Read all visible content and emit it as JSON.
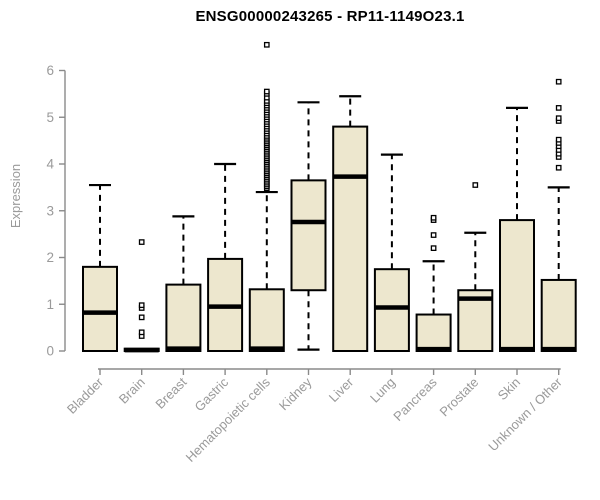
{
  "chart_data": {
    "type": "boxplot",
    "title": "ENSG00000243265 - RP11-1149O23.1",
    "ylabel": "Expression",
    "xlabel": "",
    "ylim": [
      0,
      6
    ],
    "yticks": [
      0,
      1,
      2,
      3,
      4,
      5,
      6
    ],
    "grid": false,
    "legend": "none",
    "categories": [
      "Bladder",
      "Brain",
      "Breast",
      "Gastric",
      "Hematopoietic cells",
      "Kidney",
      "Liver",
      "Lung",
      "Pancreas",
      "Prostate",
      "Skin",
      "Unknown / Other"
    ],
    "boxes": [
      {
        "name": "Bladder",
        "whisker_low": 0,
        "q1": 0,
        "median": 0.82,
        "q3": 1.8,
        "whisker_high": 3.55,
        "outliers": []
      },
      {
        "name": "Brain",
        "whisker_low": 0,
        "q1": 0,
        "median": 0.02,
        "q3": 0.05,
        "whisker_high": 0.05,
        "outliers": [
          0.32,
          0.4,
          0.72,
          0.92,
          0.98,
          2.33
        ]
      },
      {
        "name": "Breast",
        "whisker_low": 0,
        "q1": 0,
        "median": 0.05,
        "q3": 1.42,
        "whisker_high": 2.88,
        "outliers": []
      },
      {
        "name": "Gastric",
        "whisker_low": 0,
        "q1": 0,
        "median": 0.95,
        "q3": 1.97,
        "whisker_high": 4.0,
        "outliers": []
      },
      {
        "name": "Hematopoietic cells",
        "whisker_low": 0,
        "q1": 0,
        "median": 0.05,
        "q3": 1.32,
        "whisker_high": 3.4,
        "outliers": [
          3.48,
          3.52,
          3.56,
          3.6,
          3.64,
          3.68,
          3.72,
          3.76,
          3.8,
          3.84,
          3.88,
          3.92,
          3.96,
          4.0,
          4.04,
          4.08,
          4.12,
          4.16,
          4.2,
          4.24,
          4.28,
          4.32,
          4.36,
          4.4,
          4.44,
          4.48,
          4.52,
          4.56,
          4.6,
          4.65,
          4.7,
          4.75,
          4.8,
          4.85,
          4.9,
          4.95,
          5.0,
          5.05,
          5.1,
          5.15,
          5.2,
          5.25,
          5.3,
          5.35,
          5.42,
          5.5,
          5.55,
          6.55
        ]
      },
      {
        "name": "Kidney",
        "whisker_low": 0.03,
        "q1": 1.3,
        "median": 2.76,
        "q3": 3.65,
        "whisker_high": 5.32,
        "outliers": []
      },
      {
        "name": "Liver",
        "whisker_low": 0,
        "q1": 0,
        "median": 3.73,
        "q3": 4.8,
        "whisker_high": 5.45,
        "outliers": []
      },
      {
        "name": "Lung",
        "whisker_low": 0,
        "q1": 0,
        "median": 0.93,
        "q3": 1.75,
        "whisker_high": 4.2,
        "outliers": []
      },
      {
        "name": "Pancreas",
        "whisker_low": 0,
        "q1": 0,
        "median": 0.04,
        "q3": 0.78,
        "whisker_high": 1.92,
        "outliers": [
          2.2,
          2.48,
          2.8,
          2.85
        ]
      },
      {
        "name": "Prostate",
        "whisker_low": 0,
        "q1": 0,
        "median": 1.12,
        "q3": 1.3,
        "whisker_high": 2.53,
        "outliers": [
          3.55
        ]
      },
      {
        "name": "Skin",
        "whisker_low": 0,
        "q1": 0,
        "median": 0.04,
        "q3": 2.8,
        "whisker_high": 5.2,
        "outliers": []
      },
      {
        "name": "Unknown / Other",
        "whisker_low": 0,
        "q1": 0,
        "median": 0.04,
        "q3": 1.52,
        "whisker_high": 3.5,
        "outliers": [
          3.92,
          4.15,
          4.22,
          4.3,
          4.38,
          4.45,
          4.52,
          4.92,
          4.98,
          5.2,
          5.76
        ]
      }
    ]
  },
  "colors": {
    "box_fill": "#EDE7CE",
    "box_stroke": "#000000",
    "median": "#000000",
    "whisker": "#000000",
    "outlier_fill": "#ffffff",
    "axis": "#8a8a8a",
    "tick_label": "#9a9a9a",
    "title": "#000000",
    "background": "#ffffff"
  }
}
